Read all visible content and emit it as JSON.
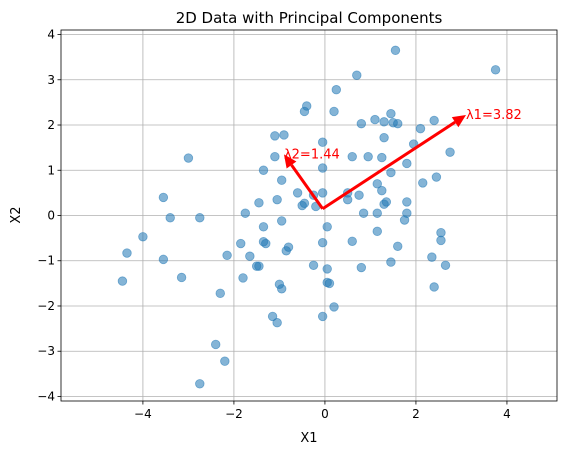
{
  "chart_data": {
    "type": "scatter",
    "title": "2D Data with Principal Components",
    "xlabel": "X1",
    "ylabel": "X2",
    "xlim": [
      -5.8,
      5.1
    ],
    "ylim": [
      -4.1,
      4.1
    ],
    "xticks": [
      -4,
      -2,
      0,
      2,
      4
    ],
    "yticks": [
      -4,
      -3,
      -2,
      -1,
      0,
      1,
      2,
      3,
      4
    ],
    "xtick_labels": [
      "−4",
      "−2",
      "0",
      "2",
      "4"
    ],
    "ytick_labels": [
      "−4",
      "−3",
      "−2",
      "−1",
      "0",
      "1",
      "2",
      "3",
      "4"
    ],
    "grid": true,
    "colors": {
      "points": "#1f77b4",
      "arrows": "#ff0000"
    },
    "point_alpha": 0.55,
    "points": [
      [
        1.55,
        3.65
      ],
      [
        0.7,
        3.1
      ],
      [
        3.75,
        3.22
      ],
      [
        0.25,
        2.78
      ],
      [
        -0.4,
        2.42
      ],
      [
        -0.45,
        2.3
      ],
      [
        0.2,
        2.3
      ],
      [
        1.45,
        2.25
      ],
      [
        1.1,
        2.12
      ],
      [
        1.3,
        2.07
      ],
      [
        2.4,
        2.1
      ],
      [
        0.8,
        2.03
      ],
      [
        1.5,
        2.05
      ],
      [
        1.6,
        2.03
      ],
      [
        2.1,
        1.92
      ],
      [
        -1.1,
        1.76
      ],
      [
        -0.9,
        1.78
      ],
      [
        1.3,
        1.72
      ],
      [
        -0.05,
        1.62
      ],
      [
        1.95,
        1.58
      ],
      [
        2.75,
        1.4
      ],
      [
        -3.0,
        1.27
      ],
      [
        -1.1,
        1.3
      ],
      [
        0.6,
        1.3
      ],
      [
        0.95,
        1.3
      ],
      [
        1.25,
        1.28
      ],
      [
        1.8,
        1.15
      ],
      [
        -0.05,
        1.05
      ],
      [
        -1.35,
        1.0
      ],
      [
        1.45,
        0.95
      ],
      [
        2.45,
        0.85
      ],
      [
        -0.95,
        0.78
      ],
      [
        1.15,
        0.7
      ],
      [
        2.15,
        0.72
      ],
      [
        -0.05,
        0.5
      ],
      [
        -0.6,
        0.5
      ],
      [
        0.5,
        0.5
      ],
      [
        0.75,
        0.45
      ],
      [
        1.25,
        0.55
      ],
      [
        -0.25,
        0.45
      ],
      [
        -3.55,
        0.4
      ],
      [
        -1.05,
        0.35
      ],
      [
        -1.45,
        0.28
      ],
      [
        0.5,
        0.35
      ],
      [
        1.35,
        0.3
      ],
      [
        1.8,
        0.3
      ],
      [
        -0.45,
        0.27
      ],
      [
        -0.5,
        0.22
      ],
      [
        -0.2,
        0.2
      ],
      [
        1.3,
        0.25
      ],
      [
        -1.75,
        0.05
      ],
      [
        0.85,
        0.05
      ],
      [
        1.15,
        0.05
      ],
      [
        1.8,
        0.05
      ],
      [
        -3.4,
        -0.05
      ],
      [
        -2.75,
        -0.05
      ],
      [
        -0.95,
        -0.12
      ],
      [
        1.75,
        -0.1
      ],
      [
        0.05,
        -0.25
      ],
      [
        -1.35,
        -0.25
      ],
      [
        1.15,
        -0.35
      ],
      [
        2.55,
        -0.38
      ],
      [
        -4.0,
        -0.47
      ],
      [
        -1.35,
        -0.58
      ],
      [
        -1.3,
        -0.62
      ],
      [
        -1.85,
        -0.62
      ],
      [
        0.6,
        -0.57
      ],
      [
        2.55,
        -0.55
      ],
      [
        -0.05,
        -0.6
      ],
      [
        -0.8,
        -0.7
      ],
      [
        1.6,
        -0.68
      ],
      [
        -0.85,
        -0.78
      ],
      [
        -4.35,
        -0.83
      ],
      [
        -2.15,
        -0.88
      ],
      [
        -1.65,
        -0.9
      ],
      [
        2.35,
        -0.92
      ],
      [
        -3.55,
        -0.97
      ],
      [
        1.45,
        -1.03
      ],
      [
        2.65,
        -1.1
      ],
      [
        -0.25,
        -1.1
      ],
      [
        -1.45,
        -1.12
      ],
      [
        -1.5,
        -1.12
      ],
      [
        0.05,
        -1.18
      ],
      [
        0.8,
        -1.15
      ],
      [
        -3.15,
        -1.37
      ],
      [
        -1.8,
        -1.38
      ],
      [
        -4.45,
        -1.45
      ],
      [
        0.05,
        -1.48
      ],
      [
        0.1,
        -1.5
      ],
      [
        -1.0,
        -1.52
      ],
      [
        -0.95,
        -1.62
      ],
      [
        2.4,
        -1.58
      ],
      [
        -2.3,
        -1.72
      ],
      [
        0.2,
        -2.02
      ],
      [
        -1.15,
        -2.23
      ],
      [
        -0.05,
        -2.23
      ],
      [
        -1.05,
        -2.37
      ],
      [
        -2.4,
        -2.85
      ],
      [
        -2.2,
        -3.22
      ],
      [
        -2.75,
        -3.72
      ]
    ],
    "mean": [
      -0.05,
      0.15
    ],
    "components": [
      {
        "label": "λ1=3.82",
        "vector": [
          3.15,
          2.07
        ]
      },
      {
        "label": "λ2=1.44",
        "vector": [
          -0.85,
          1.2
        ]
      }
    ]
  }
}
